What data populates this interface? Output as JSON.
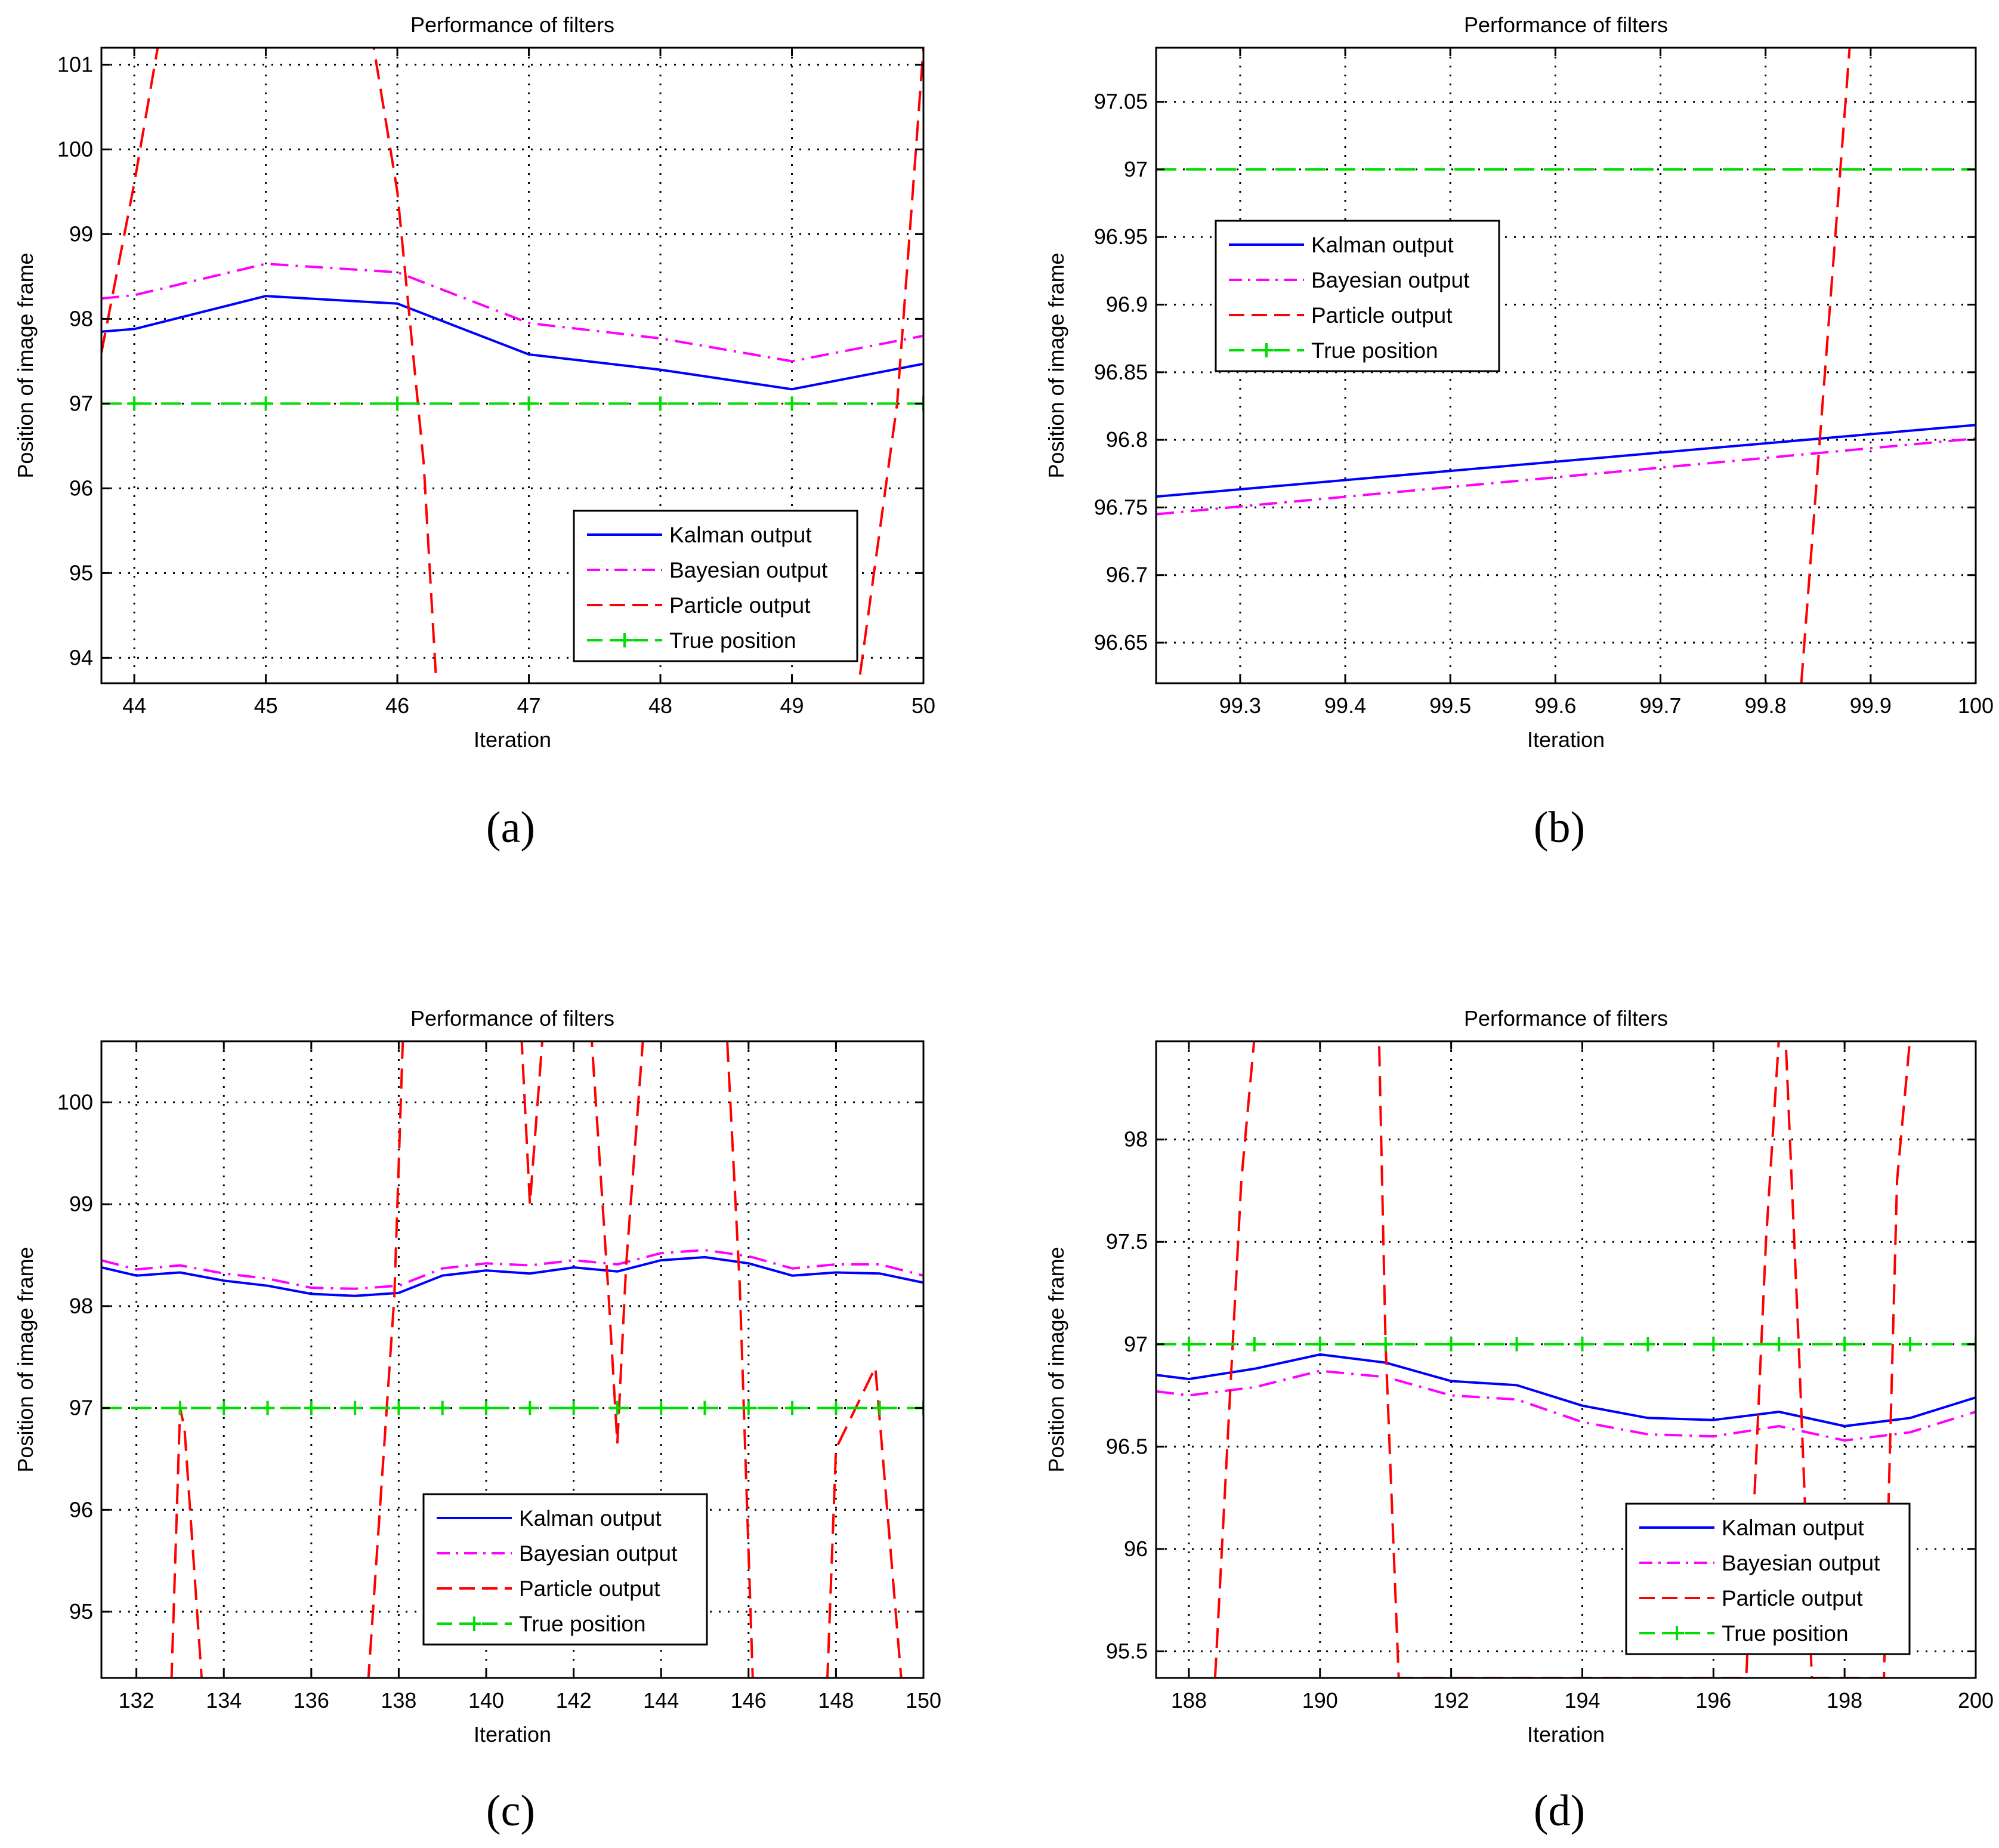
{
  "colors": {
    "kalman": "#0000ff",
    "bayesian": "#ff00ff",
    "particle": "#ff0000",
    "true_position": "#00dd00",
    "grid": "#000000",
    "legend_border": "#000000"
  },
  "chart_data": [
    {
      "type": "line",
      "panel_label": "(a)",
      "title": "Performance of filters",
      "xlabel": "Iteration",
      "ylabel": "Position of image frame",
      "xlim": [
        43.75,
        50
      ],
      "ylim": [
        93.7,
        101.2
      ],
      "xticks": [
        44,
        45,
        46,
        47,
        48,
        49,
        50
      ],
      "xtick_labels": [
        "44",
        "45",
        "46",
        "47",
        "48",
        "49",
        "50"
      ],
      "yticks": [
        94,
        95,
        96,
        97,
        98,
        99,
        100,
        101
      ],
      "ytick_labels": [
        "94",
        "95",
        "96",
        "97",
        "98",
        "99",
        "100",
        "101"
      ],
      "grid": true,
      "legend_position": "bottom-right",
      "series": [
        {
          "name": "Kalman output",
          "style": "solid",
          "color": "kalman",
          "x": [
            43.75,
            44,
            45,
            46,
            47,
            48,
            49,
            50
          ],
          "y": [
            97.85,
            97.88,
            98.27,
            98.18,
            97.58,
            97.4,
            97.17,
            97.47
          ]
        },
        {
          "name": "Bayesian output",
          "style": "dashdot",
          "color": "bayesian",
          "x": [
            43.75,
            44,
            45,
            46,
            47,
            48,
            49,
            50
          ],
          "y": [
            98.24,
            98.28,
            98.65,
            98.55,
            97.95,
            97.77,
            97.5,
            97.8
          ]
        },
        {
          "name": "Particle output",
          "style": "dashed",
          "color": "particle",
          "x": [
            43.75,
            44.0,
            44.2,
            45.8,
            46.0,
            46.2,
            46.3,
            49.5,
            49.8,
            50.0
          ],
          "y": [
            97.6,
            99.6,
            101.4,
            101.4,
            99.5,
            96.3,
            93.6,
            93.6,
            97.0,
            101.2
          ]
        },
        {
          "name": "True position",
          "style": "dashed-plus",
          "color": "true_position",
          "x": [
            43.75,
            44,
            45,
            46,
            47,
            48,
            49,
            50
          ],
          "y": [
            97,
            97,
            97,
            97,
            97,
            97,
            97,
            97
          ],
          "markers_x": [
            44,
            45,
            46,
            47,
            48,
            49,
            50
          ]
        }
      ]
    },
    {
      "type": "line",
      "panel_label": "(b)",
      "title": "Performance of filters",
      "xlabel": "Iteration",
      "ylabel": "Position of image frame",
      "xlim": [
        99.22,
        100
      ],
      "ylim": [
        96.62,
        97.09
      ],
      "xticks": [
        99.3,
        99.4,
        99.5,
        99.6,
        99.7,
        99.8,
        99.9,
        100
      ],
      "xtick_labels": [
        "99.3",
        "99.4",
        "99.5",
        "99.6",
        "99.7",
        "99.8",
        "99.9",
        "100"
      ],
      "yticks": [
        96.65,
        96.7,
        96.75,
        96.8,
        96.85,
        96.9,
        96.95,
        97,
        97.05
      ],
      "ytick_labels": [
        "96.65",
        "96.7",
        "96.75",
        "96.8",
        "96.85",
        "96.9",
        "96.95",
        "97",
        "97.05"
      ],
      "grid": true,
      "legend_position": "top-left",
      "series": [
        {
          "name": "Kalman output",
          "style": "solid",
          "color": "kalman",
          "x": [
            99.22,
            100
          ],
          "y": [
            96.758,
            96.811
          ]
        },
        {
          "name": "Bayesian output",
          "style": "dashdot",
          "color": "bayesian",
          "x": [
            99.22,
            100
          ],
          "y": [
            96.745,
            96.801
          ]
        },
        {
          "name": "Particle output",
          "style": "dashed",
          "color": "particle",
          "x": [
            99.834,
            99.88
          ],
          "y": [
            96.62,
            97.09
          ]
        },
        {
          "name": "True position",
          "style": "dashed-plus",
          "color": "true_position",
          "x": [
            99.22,
            100
          ],
          "y": [
            97,
            97
          ],
          "markers_x": []
        }
      ]
    },
    {
      "type": "line",
      "panel_label": "(c)",
      "title": "Performance of filters",
      "xlabel": "Iteration",
      "ylabel": "Position of image frame",
      "xlim": [
        131.2,
        150
      ],
      "ylim": [
        94.35,
        100.6
      ],
      "xticks": [
        132,
        134,
        136,
        138,
        140,
        142,
        144,
        146,
        148,
        150
      ],
      "xtick_labels": [
        "132",
        "134",
        "136",
        "138",
        "140",
        "142",
        "144",
        "146",
        "148",
        "150"
      ],
      "yticks": [
        95,
        96,
        97,
        98,
        99,
        100
      ],
      "ytick_labels": [
        "95",
        "96",
        "97",
        "98",
        "99",
        "100"
      ],
      "grid": true,
      "legend_position": "bottom-center",
      "series": [
        {
          "name": "Kalman output",
          "style": "solid",
          "color": "kalman",
          "x": [
            131.2,
            132,
            133,
            134,
            135,
            136,
            137,
            138,
            139,
            140,
            141,
            142,
            143,
            144,
            145,
            146,
            147,
            148,
            149,
            150
          ],
          "y": [
            98.38,
            98.3,
            98.33,
            98.25,
            98.2,
            98.12,
            98.1,
            98.13,
            98.3,
            98.35,
            98.32,
            98.38,
            98.34,
            98.45,
            98.48,
            98.42,
            98.3,
            98.33,
            98.32,
            98.23
          ]
        },
        {
          "name": "Bayesian output",
          "style": "dashdot",
          "color": "bayesian",
          "x": [
            131.2,
            132,
            133,
            134,
            135,
            136,
            137,
            138,
            139,
            140,
            141,
            142,
            143,
            144,
            145,
            146,
            147,
            148,
            149,
            150
          ],
          "y": [
            98.45,
            98.36,
            98.4,
            98.32,
            98.27,
            98.18,
            98.17,
            98.2,
            98.37,
            98.42,
            98.4,
            98.45,
            98.41,
            98.52,
            98.55,
            98.49,
            98.37,
            98.41,
            98.41,
            98.3
          ]
        },
        {
          "name": "Particle output",
          "style": "dashed",
          "color": "particle",
          "x": [
            132.8,
            133.0,
            133.1,
            133.5,
            137.3,
            137.9,
            138.1,
            140.8,
            141.0,
            141.3,
            142.4,
            142.8,
            143.0,
            143.2,
            143.6,
            145.5,
            145.8,
            146.1,
            147.8,
            148.0,
            148.9,
            149.5
          ],
          "y": [
            94.3,
            97.0,
            96.8,
            94.3,
            94.3,
            98.1,
            100.7,
            100.7,
            99.0,
            100.7,
            100.7,
            98.1,
            96.65,
            98.4,
            100.7,
            100.7,
            98.2,
            94.3,
            94.3,
            96.6,
            97.4,
            94.3
          ]
        },
        {
          "name": "True position",
          "style": "dashed-plus",
          "color": "true_position",
          "x": [
            131.2,
            150
          ],
          "y": [
            97,
            97
          ],
          "markers_x": [
            133,
            134,
            135,
            136,
            137,
            138,
            139,
            140,
            141,
            142,
            143,
            144,
            145,
            146,
            147,
            148,
            149,
            150
          ]
        }
      ]
    },
    {
      "type": "line",
      "panel_label": "(d)",
      "title": "Performance of filters",
      "xlabel": "Iteration",
      "ylabel": "Position of image frame",
      "xlim": [
        187.5,
        200
      ],
      "ylim": [
        95.37,
        98.48
      ],
      "xticks": [
        188,
        190,
        192,
        194,
        196,
        198,
        200
      ],
      "xtick_labels": [
        "188",
        "190",
        "192",
        "194",
        "196",
        "198",
        "200"
      ],
      "yticks": [
        95.5,
        96,
        96.5,
        97,
        97.5,
        98
      ],
      "ytick_labels": [
        "95.5",
        "96",
        "96.5",
        "97",
        "97.5",
        "98"
      ],
      "grid": true,
      "legend_position": "bottom-right",
      "series": [
        {
          "name": "Kalman output",
          "style": "solid",
          "color": "kalman",
          "x": [
            187.5,
            188,
            189,
            190,
            191,
            192,
            193,
            194,
            195,
            196,
            197,
            198,
            199,
            200
          ],
          "y": [
            96.85,
            96.83,
            96.88,
            96.95,
            96.91,
            96.82,
            96.8,
            96.7,
            96.64,
            96.63,
            96.67,
            96.6,
            96.64,
            96.74
          ]
        },
        {
          "name": "Bayesian output",
          "style": "dashdot",
          "color": "bayesian",
          "x": [
            187.5,
            188,
            189,
            190,
            191,
            192,
            193,
            194,
            195,
            196,
            197,
            198,
            199,
            200
          ],
          "y": [
            96.77,
            96.75,
            96.79,
            96.87,
            96.84,
            96.75,
            96.73,
            96.62,
            96.56,
            96.55,
            96.6,
            96.53,
            96.57,
            96.67
          ]
        },
        {
          "name": "Particle output",
          "style": "dashed",
          "color": "particle",
          "x": [
            188.4,
            188.8,
            189.0,
            190.9,
            191.0,
            191.2,
            196.5,
            196.8,
            197.0,
            197.1,
            197.3,
            197.5,
            198.6,
            198.8,
            199.0
          ],
          "y": [
            95.37,
            97.8,
            98.5,
            98.5,
            97.0,
            95.37,
            95.37,
            97.5,
            98.5,
            98.5,
            97.0,
            95.37,
            95.37,
            97.8,
            98.5
          ]
        },
        {
          "name": "True position",
          "style": "dashed-plus",
          "color": "true_position",
          "x": [
            187.5,
            200
          ],
          "y": [
            97,
            97
          ],
          "markers_x": [
            188,
            189,
            190,
            191,
            192,
            193,
            194,
            195,
            196,
            197,
            198,
            199,
            200
          ]
        }
      ]
    }
  ]
}
